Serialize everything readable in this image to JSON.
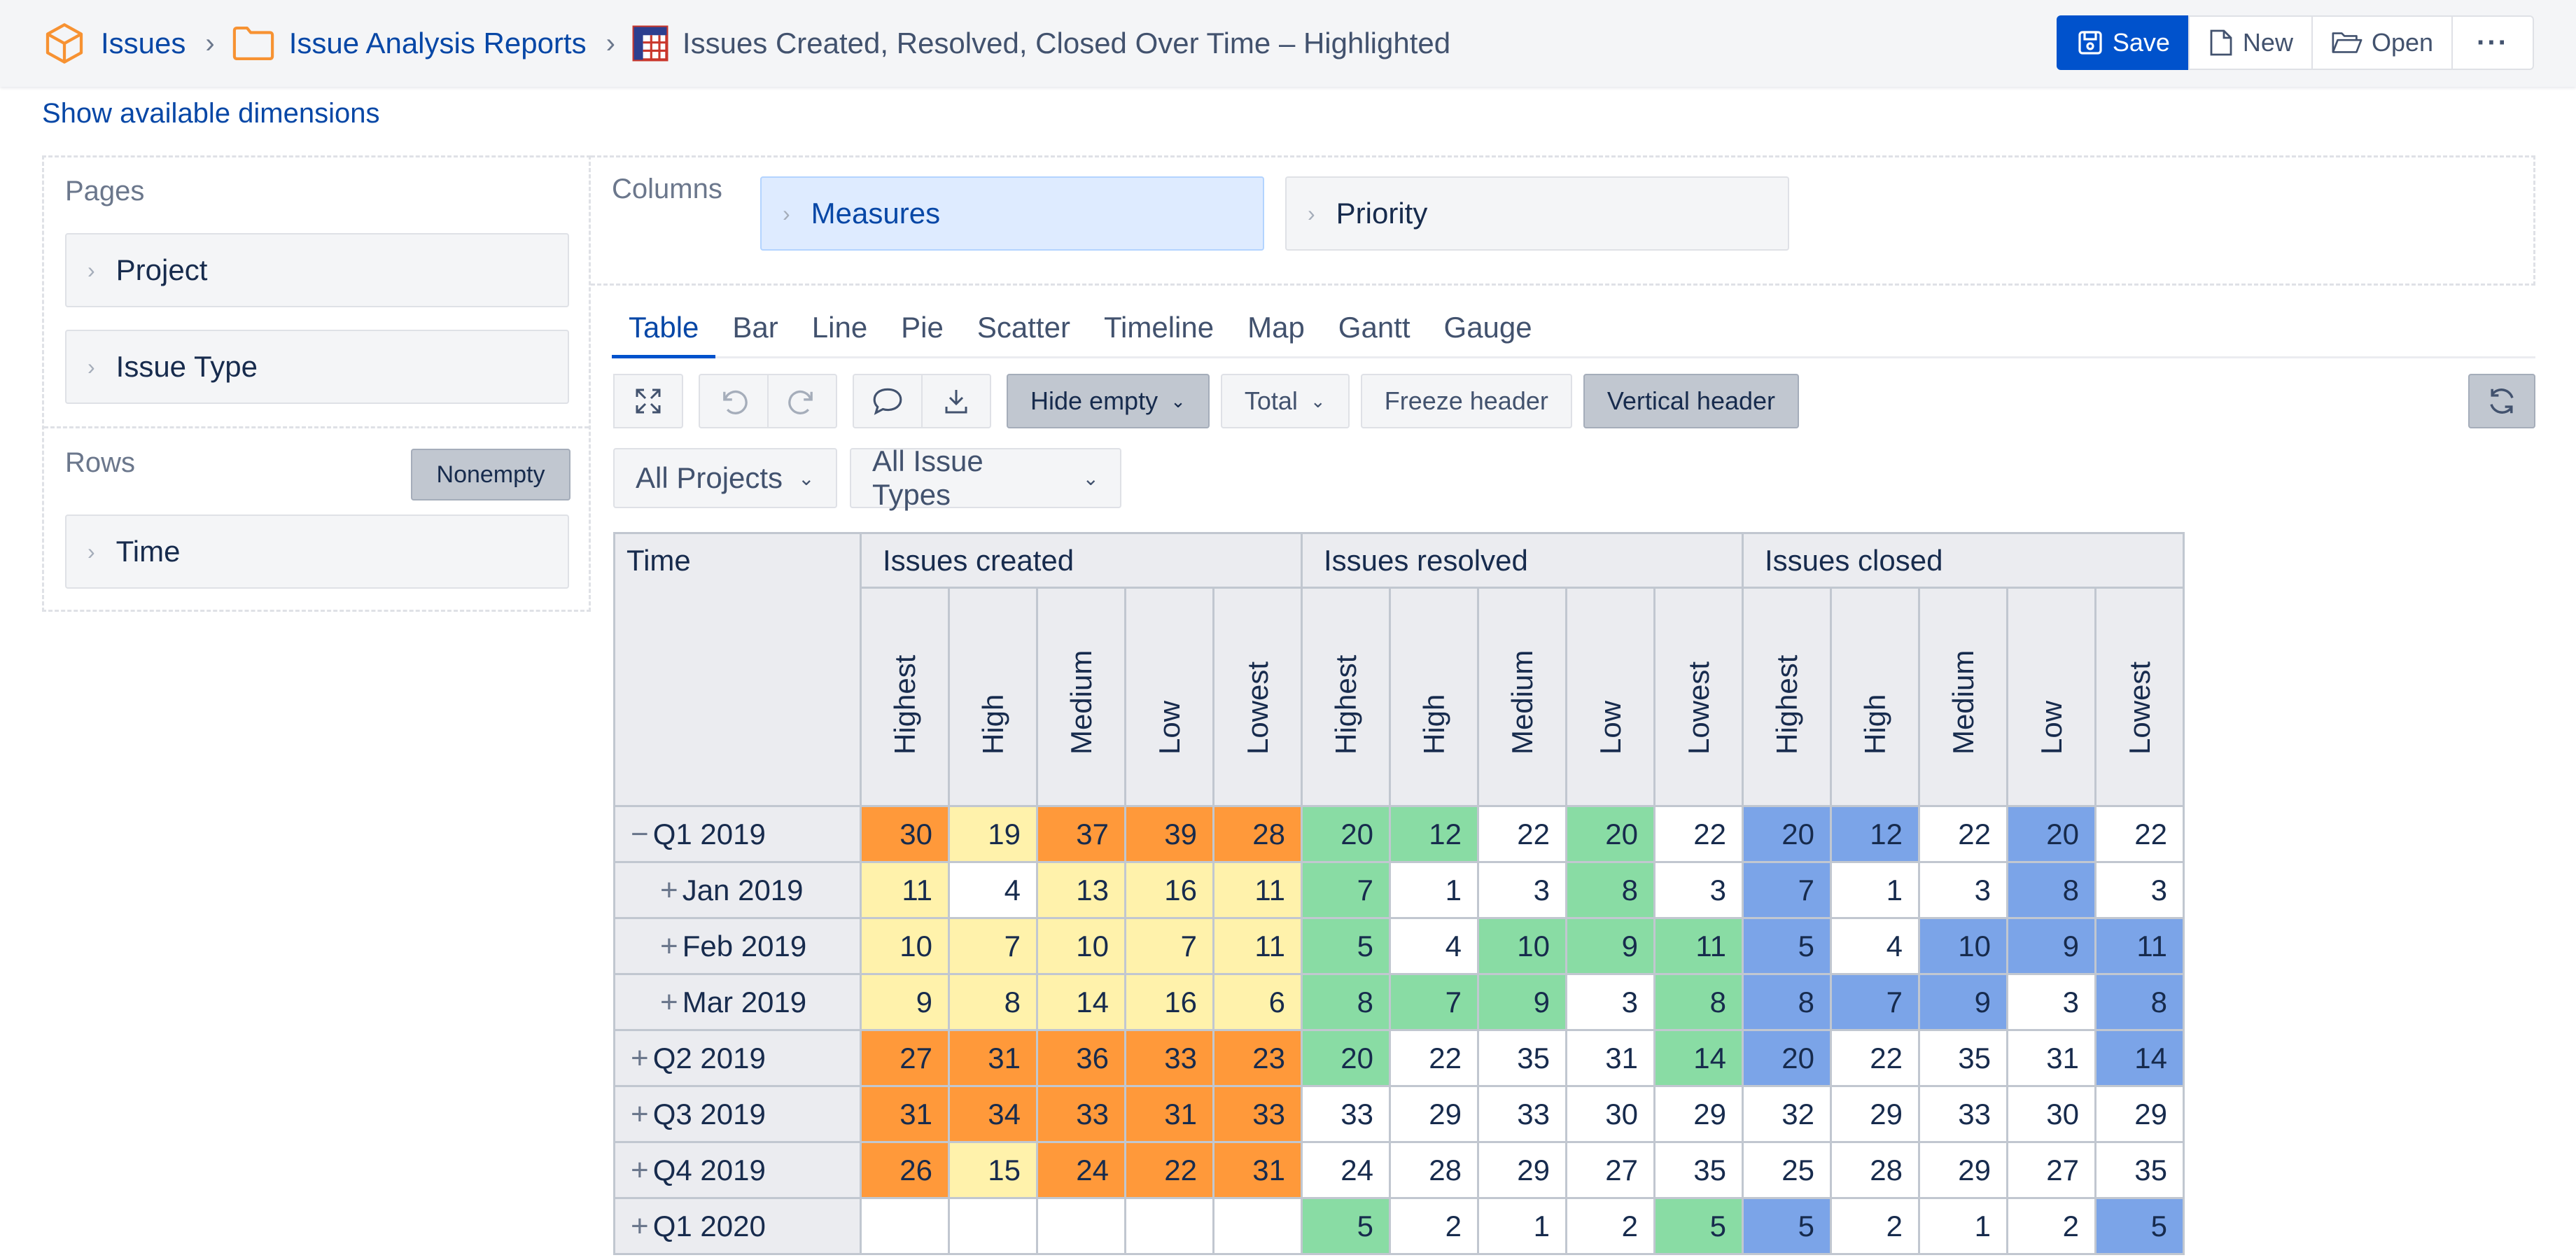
{
  "breadcrumb": {
    "root": "Issues",
    "folder": "Issue Analysis Reports",
    "report": "Issues Created, Resolved, Closed Over Time – Highlighted"
  },
  "actions": {
    "save": "Save",
    "new": "New",
    "open": "Open",
    "more": "···"
  },
  "show_dimensions": "Show available dimensions",
  "pages": {
    "label": "Pages",
    "items": [
      "Project",
      "Issue Type"
    ]
  },
  "rows": {
    "label": "Rows",
    "nonempty": "Nonempty",
    "items": [
      "Time"
    ]
  },
  "columns": {
    "label": "Columns",
    "items": [
      "Measures",
      "Priority"
    ]
  },
  "tabs": [
    "Table",
    "Bar",
    "Line",
    "Pie",
    "Scatter",
    "Timeline",
    "Map",
    "Gantt",
    "Gauge"
  ],
  "toolbar": {
    "hide_empty": "Hide empty",
    "total": "Total",
    "freeze_header": "Freeze header",
    "vertical_header": "Vertical header"
  },
  "filters": {
    "projects": "All Projects",
    "issue_types": "All Issue Types"
  },
  "colors": {
    "orange": "#ff993a",
    "yellow": "#fff2ab",
    "green": "#89dca4",
    "blue": "#7ba4e8",
    "accent": "#0052cc"
  },
  "table": {
    "corner": "Time",
    "groups": [
      "Issues created",
      "Issues resolved",
      "Issues closed"
    ],
    "priorities": [
      "Highest",
      "High",
      "Medium",
      "Low",
      "Lowest"
    ],
    "rows": [
      {
        "label": "Q1 2019",
        "toggle": "−",
        "level": 0,
        "values": [
          30,
          19,
          37,
          39,
          28,
          20,
          12,
          22,
          20,
          22,
          20,
          12,
          22,
          20,
          22
        ],
        "colors": [
          "o",
          "y",
          "o",
          "o",
          "o",
          "g",
          "g",
          "",
          "g",
          "",
          "b",
          "b",
          "",
          "b",
          ""
        ]
      },
      {
        "label": "Jan 2019",
        "toggle": "+",
        "level": 1,
        "values": [
          11,
          4,
          13,
          16,
          11,
          7,
          1,
          3,
          8,
          3,
          7,
          1,
          3,
          8,
          3
        ],
        "colors": [
          "y",
          "",
          "y",
          "y",
          "y",
          "g",
          "",
          "",
          "g",
          "",
          "b",
          "",
          "",
          "b",
          ""
        ]
      },
      {
        "label": "Feb 2019",
        "toggle": "+",
        "level": 1,
        "values": [
          10,
          7,
          10,
          7,
          11,
          5,
          4,
          10,
          9,
          11,
          5,
          4,
          10,
          9,
          11
        ],
        "colors": [
          "y",
          "y",
          "y",
          "y",
          "y",
          "g",
          "",
          "g",
          "g",
          "g",
          "b",
          "",
          "b",
          "b",
          "b"
        ]
      },
      {
        "label": "Mar 2019",
        "toggle": "+",
        "level": 1,
        "values": [
          9,
          8,
          14,
          16,
          6,
          8,
          7,
          9,
          3,
          8,
          8,
          7,
          9,
          3,
          8
        ],
        "colors": [
          "y",
          "y",
          "y",
          "y",
          "y",
          "g",
          "g",
          "g",
          "",
          "g",
          "b",
          "b",
          "b",
          "",
          "b"
        ]
      },
      {
        "label": "Q2 2019",
        "toggle": "+",
        "level": 0,
        "values": [
          27,
          31,
          36,
          33,
          23,
          20,
          22,
          35,
          31,
          14,
          20,
          22,
          35,
          31,
          14
        ],
        "colors": [
          "o",
          "o",
          "o",
          "o",
          "o",
          "g",
          "",
          "",
          "",
          "g",
          "b",
          "",
          "",
          "",
          "b"
        ]
      },
      {
        "label": "Q3 2019",
        "toggle": "+",
        "level": 0,
        "values": [
          31,
          34,
          33,
          31,
          33,
          33,
          29,
          33,
          30,
          29,
          32,
          29,
          33,
          30,
          29
        ],
        "colors": [
          "o",
          "o",
          "o",
          "o",
          "o",
          "",
          "",
          "",
          "",
          "",
          "",
          "",
          "",
          "",
          ""
        ]
      },
      {
        "label": "Q4 2019",
        "toggle": "+",
        "level": 0,
        "values": [
          26,
          15,
          24,
          22,
          31,
          24,
          28,
          29,
          27,
          35,
          25,
          28,
          29,
          27,
          35
        ],
        "colors": [
          "o",
          "y",
          "o",
          "o",
          "o",
          "",
          "",
          "",
          "",
          "",
          "",
          "",
          "",
          "",
          ""
        ]
      },
      {
        "label": "Q1 2020",
        "toggle": "+",
        "level": 0,
        "values": [
          "",
          "",
          "",
          "",
          "",
          5,
          2,
          1,
          2,
          5,
          5,
          2,
          1,
          2,
          5
        ],
        "colors": [
          "",
          "",
          "",
          "",
          "",
          "g",
          "",
          "",
          "",
          "g",
          "b",
          "",
          "",
          "",
          "b"
        ]
      }
    ]
  }
}
